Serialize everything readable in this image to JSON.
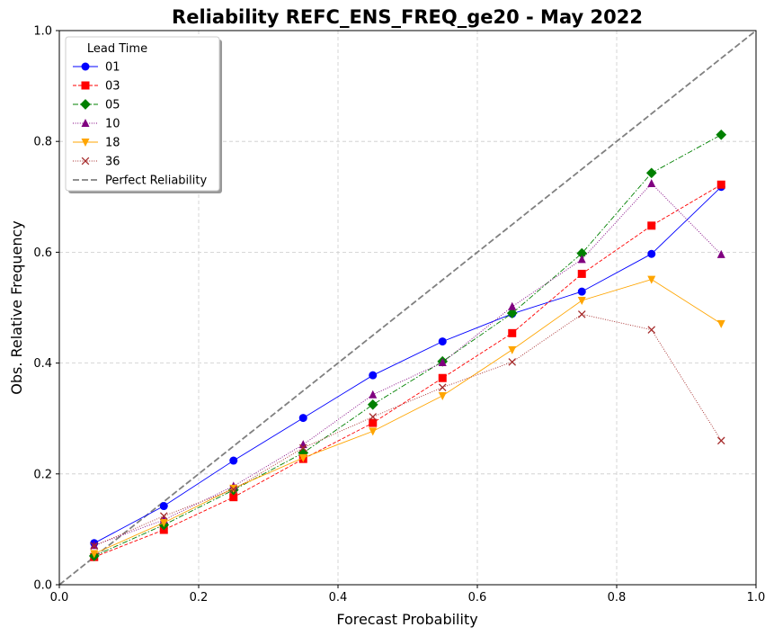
{
  "chart_data": {
    "type": "line",
    "title": "Reliability REFC_ENS_FREQ_ge20 - May 2022",
    "xlabel": "Forecast Probability",
    "ylabel": "Obs. Relative Frequency",
    "xlim": [
      0.0,
      1.0
    ],
    "ylim": [
      0.0,
      1.0
    ],
    "xticks": [
      "0.0",
      "0.2",
      "0.4",
      "0.6",
      "0.8",
      "1.0"
    ],
    "yticks": [
      "0.0",
      "0.2",
      "0.4",
      "0.6",
      "0.8",
      "1.0"
    ],
    "grid": true,
    "legend": {
      "title": "Lead Time",
      "placement": "top-left",
      "perfect_label": "Perfect Reliability"
    },
    "x": [
      0.05,
      0.15,
      0.25,
      0.35,
      0.45,
      0.55,
      0.65,
      0.75,
      0.85,
      0.95
    ],
    "series": [
      {
        "name": "01",
        "color": "#0000ff",
        "marker": "circle",
        "dash": "solid",
        "values": [
          0.075,
          0.142,
          0.224,
          0.301,
          0.378,
          0.439,
          0.489,
          0.529,
          0.597,
          0.718
        ]
      },
      {
        "name": "03",
        "color": "#ff0000",
        "marker": "square",
        "dash": "dashed",
        "values": [
          0.05,
          0.099,
          0.158,
          0.227,
          0.292,
          0.373,
          0.454,
          0.561,
          0.648,
          0.722
        ]
      },
      {
        "name": "05",
        "color": "#008000",
        "marker": "diamond",
        "dash": "dashdot",
        "values": [
          0.052,
          0.108,
          0.171,
          0.238,
          0.325,
          0.403,
          0.49,
          0.598,
          0.743,
          0.812
        ]
      },
      {
        "name": "10",
        "color": "#800080",
        "marker": "triangle-up",
        "dash": "dotted",
        "values": [
          0.071,
          0.117,
          0.178,
          0.253,
          0.343,
          0.401,
          0.502,
          0.587,
          0.724,
          0.596
        ]
      },
      {
        "name": "18",
        "color": "#ffa500",
        "marker": "triangle-down",
        "dash": "solid",
        "values": [
          0.056,
          0.112,
          0.174,
          0.229,
          0.277,
          0.341,
          0.424,
          0.513,
          0.551,
          0.471
        ]
      },
      {
        "name": "36",
        "color": "#a52a2a",
        "marker": "x",
        "dash": "dotted",
        "values": [
          0.07,
          0.124,
          0.172,
          0.247,
          0.303,
          0.356,
          0.402,
          0.488,
          0.46,
          0.26
        ]
      }
    ],
    "perfect_color": "#808080"
  }
}
